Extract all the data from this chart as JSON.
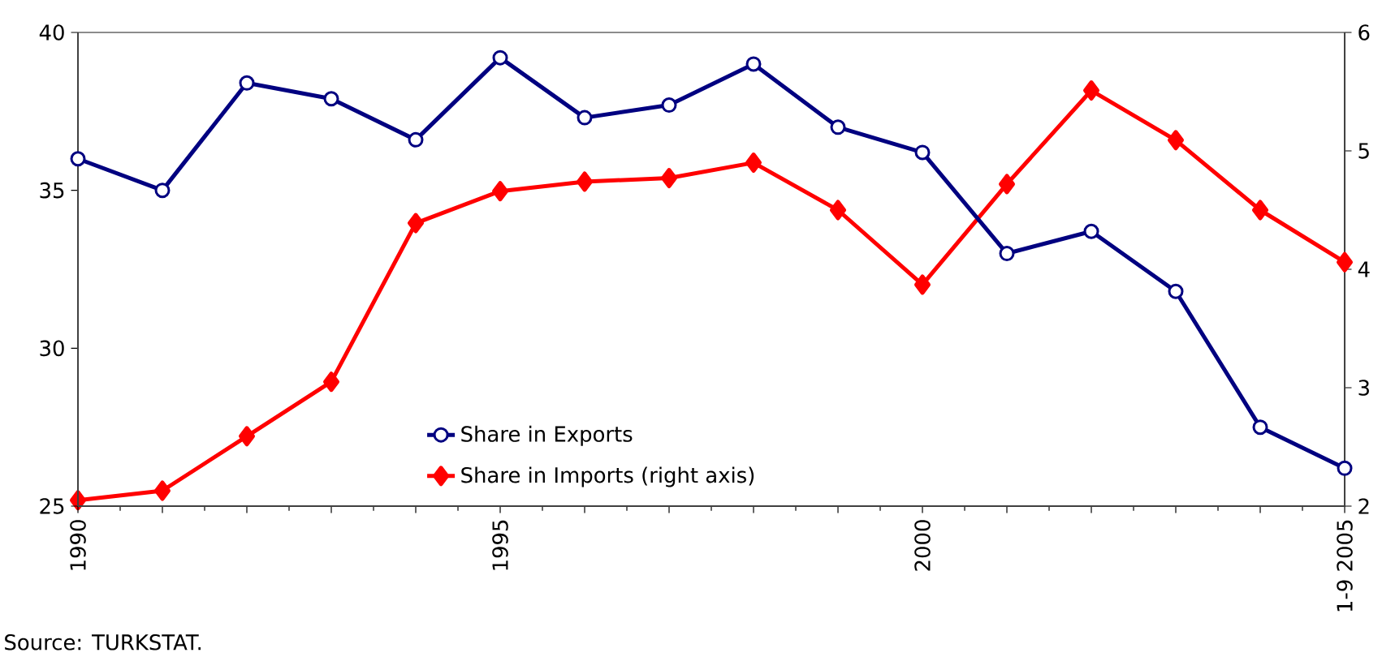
{
  "chart_data": {
    "type": "line",
    "x": [
      1990,
      1991,
      1992,
      1993,
      1994,
      1995,
      1996,
      1997,
      1998,
      1999,
      2000,
      2001,
      2002,
      2003,
      2004,
      2005
    ],
    "xlim": [
      1990,
      2005
    ],
    "xticks": [
      1990,
      {
        "value": 1991,
        "label": null
      },
      {
        "value": 1992,
        "label": null
      },
      {
        "value": 1993,
        "label": null
      },
      {
        "value": 1994,
        "label": null
      },
      1995,
      {
        "value": 1996,
        "label": null
      },
      {
        "value": 1997,
        "label": null
      },
      {
        "value": 1998,
        "label": null
      },
      {
        "value": 1999,
        "label": null
      },
      2000,
      {
        "value": 2001,
        "label": null
      },
      {
        "value": 2002,
        "label": null
      },
      {
        "value": 2003,
        "label": null
      },
      {
        "value": 2004,
        "label": null
      },
      {
        "value": 2005,
        "label": "1-9 2005"
      }
    ],
    "ylim": [
      25,
      40
    ],
    "yticks": [
      25,
      30,
      35,
      40
    ],
    "y2lim": [
      2,
      6
    ],
    "y2ticks": [
      2,
      3,
      4,
      5,
      6
    ],
    "series": [
      {
        "name": "Share in Exports",
        "color": "#000080",
        "marker": "circle",
        "values": [
          36.0,
          35.0,
          38.4,
          37.9,
          36.6,
          39.2,
          37.3,
          37.7,
          39.0,
          37.0,
          36.2,
          33.0,
          33.7,
          31.8,
          27.5,
          26.2
        ]
      },
      {
        "name": "Share in Imports (right axis)",
        "color": "#ff0000",
        "marker": "diamond",
        "axis": "y2",
        "values": [
          2.05,
          2.13,
          2.59,
          3.05,
          4.39,
          4.66,
          4.74,
          4.77,
          4.9,
          4.5,
          3.87,
          4.72,
          5.51,
          5.09,
          4.5,
          4.06
        ]
      }
    ],
    "legend": "bottom",
    "annotations": [
      "Source: TURKSTAT."
    ]
  }
}
